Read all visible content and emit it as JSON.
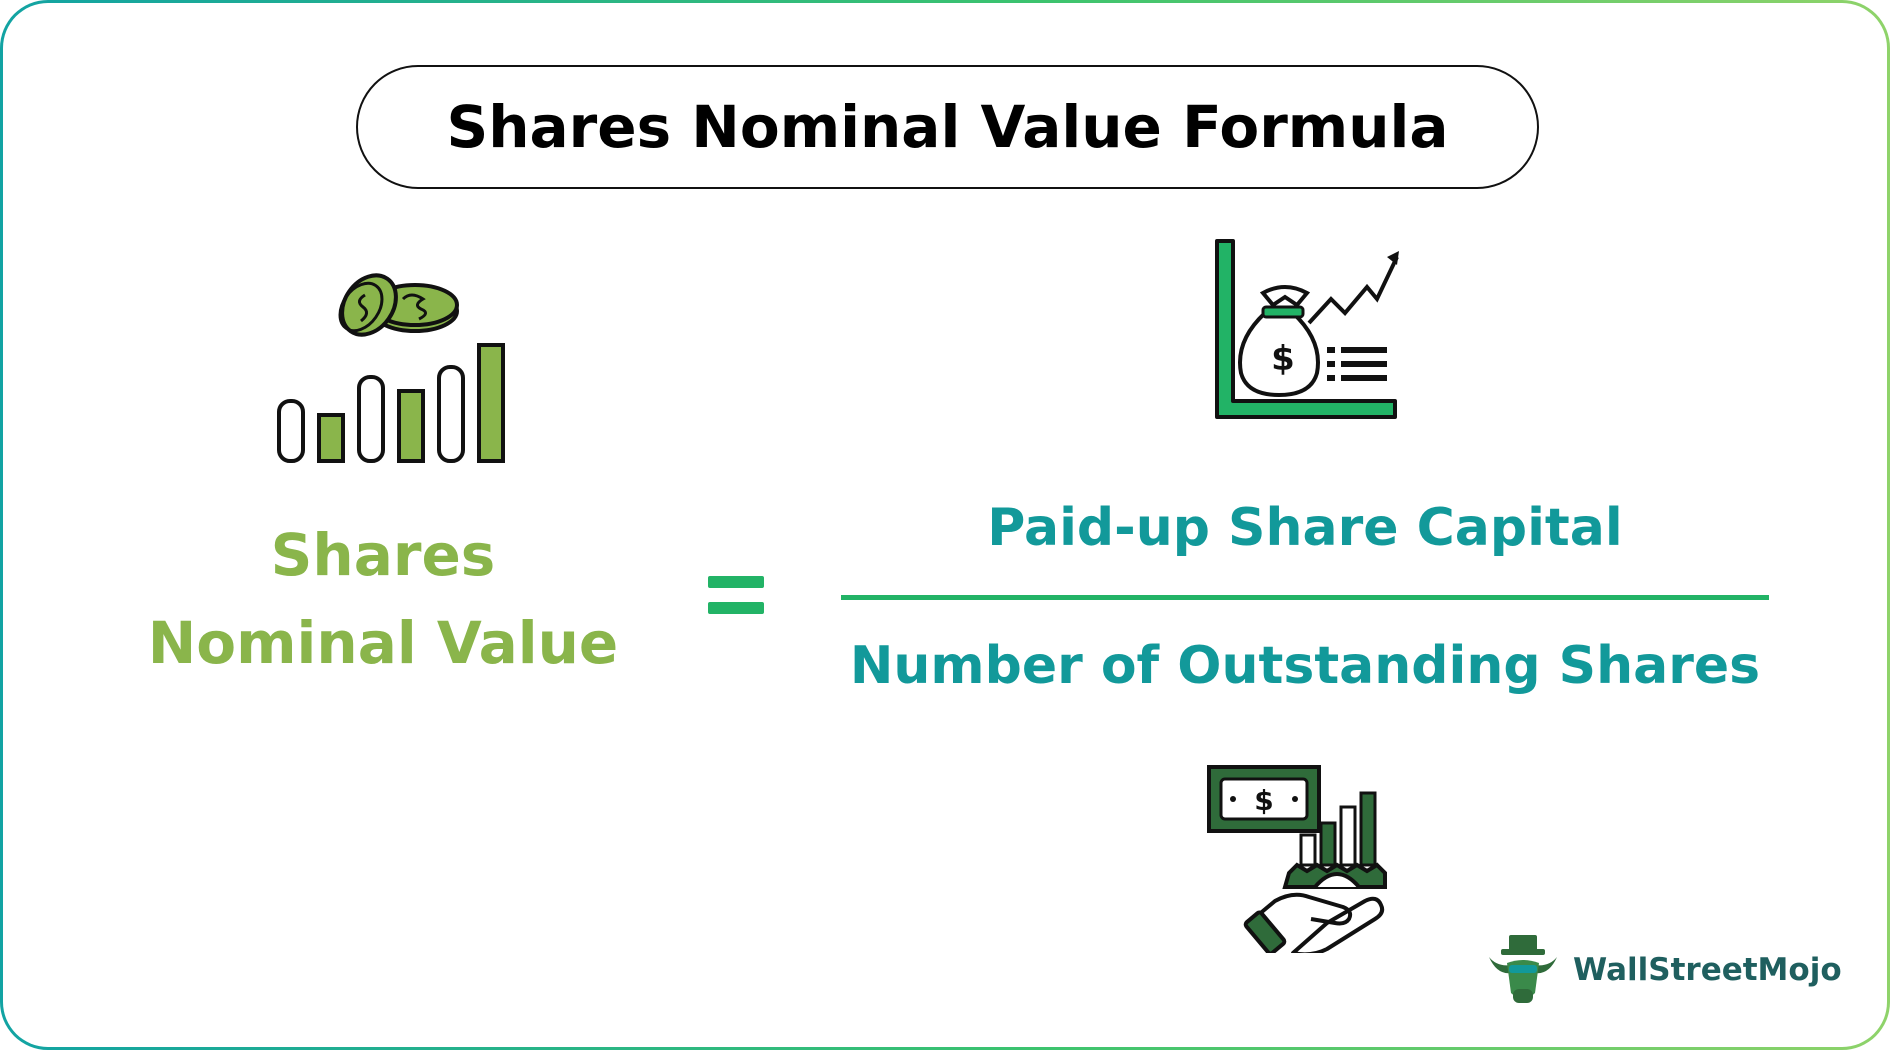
{
  "title": "Shares Nominal Value Formula",
  "formula": {
    "lhs_line1": "Shares",
    "lhs_line2": "Nominal Value",
    "equals": "=",
    "numerator": "Paid-up Share Capital",
    "denominator": "Number of Outstanding Shares"
  },
  "icons": {
    "lhs": "coins-bar-chart-icon",
    "numerator": "money-bag-growth-chart-icon",
    "denominator": "hand-money-gear-icon"
  },
  "logo": {
    "text": "WallStreetMojo",
    "icon": "bull-logo-icon"
  },
  "colors": {
    "lhs": "#8ab54b",
    "formula_text": "#12999a",
    "accent_green": "#22b366",
    "dark_green": "#2f6b3a"
  }
}
